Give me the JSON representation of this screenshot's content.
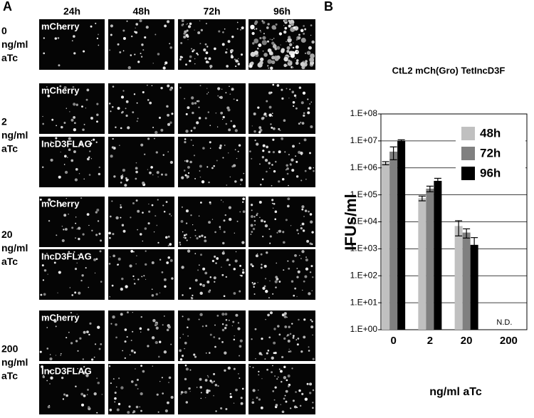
{
  "panel_a": {
    "panel_label": "A",
    "columns": [
      "24h",
      "48h",
      "72h",
      "96h"
    ],
    "groups": [
      {
        "label": [
          "0",
          "ng/ml",
          "aTc"
        ],
        "rows": [
          "mCherry"
        ]
      },
      {
        "label": [
          "2",
          "ng/ml",
          "aTc"
        ],
        "rows": [
          "mCherry",
          "IncD3FLAG"
        ]
      },
      {
        "label": [
          "20",
          "ng/ml",
          "aTc"
        ],
        "rows": [
          "mCherry",
          "IncD3FLAG"
        ]
      },
      {
        "label": [
          "200",
          "ng/ml",
          "aTc"
        ],
        "rows": [
          "mCherry",
          "IncD3FLAG"
        ]
      }
    ]
  },
  "chart_data": {
    "type": "bar",
    "panel_label": "B",
    "title": "CtL2 mCh(Gro) TetIncD3F",
    "y_label": "IFUs/ml",
    "x_label": "ng/ml aTc",
    "log_scale": true,
    "grid": true,
    "legend_position": "top-right",
    "categories": [
      "0",
      "2",
      "20",
      "200"
    ],
    "series": [
      {
        "name": "48h",
        "color": "#c0c0c0",
        "values": [
          1500000,
          75000,
          7000,
          null
        ],
        "errors": [
          200000,
          15000,
          4000,
          null
        ]
      },
      {
        "name": "72h",
        "color": "#808080",
        "values": [
          4000000,
          170000,
          4000,
          null
        ],
        "errors": [
          2000000,
          40000,
          1500,
          null
        ]
      },
      {
        "name": "96h",
        "color": "#000000",
        "values": [
          10000000,
          330000,
          1400,
          null
        ],
        "errors": [
          1000000,
          80000,
          1200,
          null
        ]
      }
    ],
    "annotations": [
      {
        "category": "200",
        "text": "N.D."
      }
    ],
    "ylim": [
      1,
      100000000
    ],
    "yticks": [
      {
        "value": 1,
        "label": "1.E+00"
      },
      {
        "value": 10,
        "label": "1.E+01"
      },
      {
        "value": 100,
        "label": "1.E+02"
      },
      {
        "value": 1000,
        "label": "1.E+03"
      },
      {
        "value": 10000,
        "label": "1.E+04"
      },
      {
        "value": 100000,
        "label": "1.E+05"
      },
      {
        "value": 1000000,
        "label": "1.E+06"
      },
      {
        "value": 10000000,
        "label": "1.E+07"
      },
      {
        "value": 100000000,
        "label": "1.E+08"
      }
    ]
  }
}
